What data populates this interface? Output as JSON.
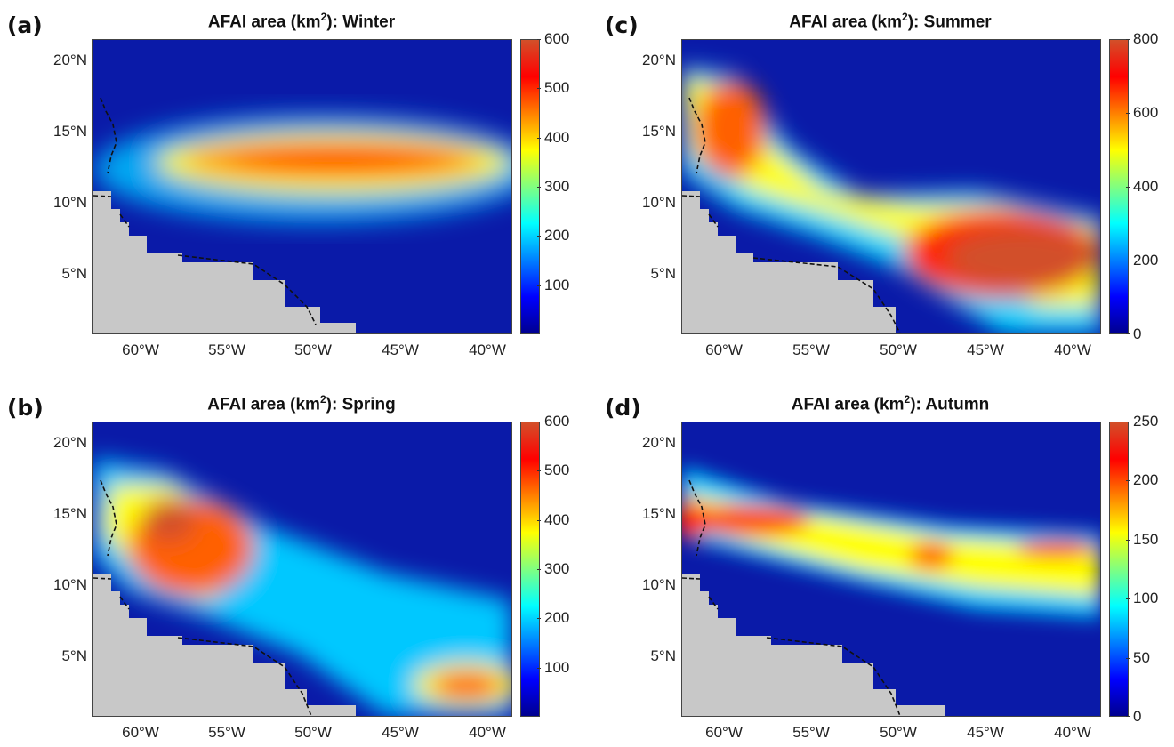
{
  "colormap": [
    "#00008f",
    "#0000ff",
    "#0080ff",
    "#00ffff",
    "#80ff80",
    "#ffff00",
    "#ff8000",
    "#ff0000",
    "#d2502a"
  ],
  "land_color": "#c8c8c8",
  "ocean_low_color": "#0a1aa8",
  "panels": [
    {
      "id": "a",
      "letter": "(a)",
      "title_prefix": "AFAI area (km",
      "title_sup": "2",
      "title_suffix": "): Winter",
      "season": "Winter",
      "colorbar": {
        "max": 600,
        "ticks": [
          "600",
          "500",
          "400",
          "300",
          "200",
          "100"
        ],
        "tick_values": [
          600,
          500,
          400,
          300,
          200,
          100
        ]
      },
      "lat_labels": [
        "20°N",
        "15°N",
        "10°N",
        "5°N"
      ],
      "lon_labels": [
        "60°W",
        "55°W",
        "50°W",
        "45°W",
        "40°W"
      ]
    },
    {
      "id": "c",
      "letter": "(c)",
      "title_prefix": "AFAI area (km",
      "title_sup": "2",
      "title_suffix": "): Summer",
      "season": "Summer",
      "colorbar": {
        "max": 800,
        "ticks": [
          "800",
          "600",
          "400",
          "200",
          "0"
        ],
        "tick_values": [
          800,
          600,
          400,
          200,
          0
        ]
      },
      "lat_labels": [
        "20°N",
        "15°N",
        "10°N",
        "5°N"
      ],
      "lon_labels": [
        "60°W",
        "55°W",
        "50°W",
        "45°W",
        "40°W"
      ]
    },
    {
      "id": "b",
      "letter": "(b)",
      "title_prefix": "AFAI area (km",
      "title_sup": "2",
      "title_suffix": "): Spring",
      "season": "Spring",
      "colorbar": {
        "max": 600,
        "ticks": [
          "600",
          "500",
          "400",
          "300",
          "200",
          "100"
        ],
        "tick_values": [
          600,
          500,
          400,
          300,
          200,
          100
        ]
      },
      "lat_labels": [
        "20°N",
        "15°N",
        "10°N",
        "5°N"
      ],
      "lon_labels": [
        "60°W",
        "55°W",
        "50°W",
        "45°W",
        "40°W"
      ]
    },
    {
      "id": "d",
      "letter": "(d)",
      "title_prefix": "AFAI area (km",
      "title_sup": "2",
      "title_suffix": "): Autumn",
      "season": "Autumn",
      "colorbar": {
        "max": 250,
        "ticks": [
          "250",
          "200",
          "150",
          "100",
          "50",
          "0"
        ],
        "tick_values": [
          250,
          200,
          150,
          100,
          50,
          0
        ]
      },
      "lat_labels": [
        "20°N",
        "15°N",
        "10°N",
        "5°N"
      ],
      "lon_labels": [
        "60°W",
        "55°W",
        "50°W",
        "45°W",
        "40°W"
      ]
    }
  ]
}
